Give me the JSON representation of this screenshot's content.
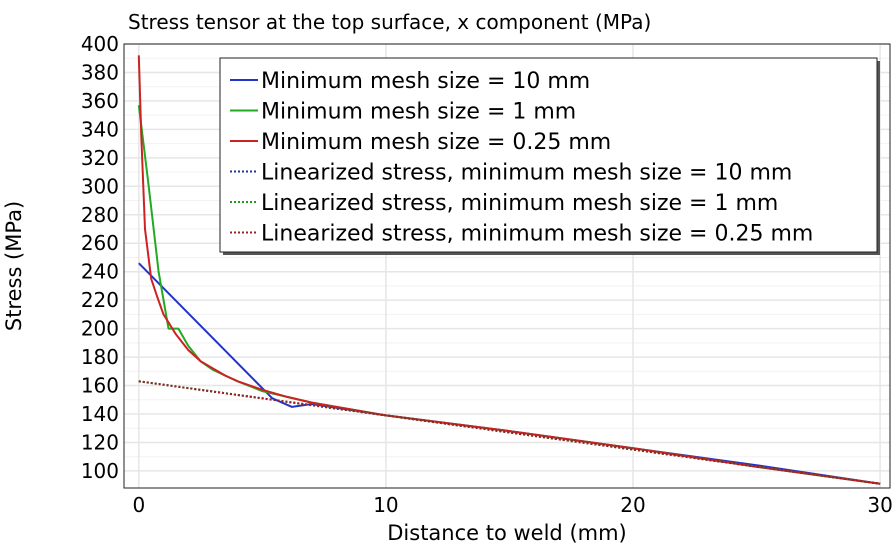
{
  "chart_data": {
    "type": "line",
    "title": "Stress tensor at the top surface, x component (MPa)",
    "xlabel": "Distance to weld (mm)",
    "ylabel": "Stress (MPa)",
    "xlim": [
      -0.6,
      30.4
    ],
    "ylim": [
      88,
      400
    ],
    "xticks": [
      0,
      10,
      20,
      30
    ],
    "yticks": [
      100,
      120,
      140,
      160,
      180,
      200,
      220,
      240,
      260,
      280,
      300,
      320,
      340,
      360,
      380,
      400
    ],
    "grid": true,
    "legend_position": "top-right",
    "series": [
      {
        "name": "Minimum mesh size = 10 mm",
        "color": "#2233cc",
        "style": "solid",
        "x": [
          0,
          5.4,
          6.2,
          7,
          10,
          15,
          20,
          25,
          30
        ],
        "y": [
          246,
          151,
          145,
          147,
          139,
          128,
          116,
          104,
          91
        ]
      },
      {
        "name": "Minimum mesh size = 1 mm",
        "color": "#22aa22",
        "style": "solid",
        "x": [
          0,
          0.4,
          0.8,
          1.2,
          1.6,
          2,
          2.5,
          3,
          3.5,
          4,
          5,
          6,
          7,
          10,
          15,
          20,
          25,
          30
        ],
        "y": [
          357,
          300,
          240,
          200,
          200,
          188,
          177,
          171,
          167,
          163,
          156,
          152,
          148,
          139,
          128,
          116,
          103,
          91
        ]
      },
      {
        "name": "Minimum mesh size = 0.25 mm",
        "color": "#cc2222",
        "style": "solid",
        "x": [
          0,
          0.1,
          0.25,
          0.5,
          0.75,
          1,
          1.5,
          2,
          2.5,
          3,
          3.5,
          4,
          5,
          6,
          7,
          10,
          15,
          20,
          25,
          30
        ],
        "y": [
          392,
          335,
          270,
          235,
          222,
          210,
          196,
          185,
          177,
          172,
          167,
          163,
          157,
          152,
          148,
          139,
          128,
          116,
          103,
          91
        ]
      },
      {
        "name": "Linearized stress, minimum mesh size = 10 mm",
        "color": "#223399",
        "style": "dotted",
        "x": [
          0,
          30
        ],
        "y": [
          163,
          91
        ]
      },
      {
        "name": "Linearized stress, minimum mesh size = 1 mm",
        "color": "#229922",
        "style": "dotted",
        "x": [
          0,
          30
        ],
        "y": [
          163,
          91
        ]
      },
      {
        "name": "Linearized stress, minimum mesh size = 0.25 mm",
        "color": "#992222",
        "style": "dotted",
        "x": [
          0,
          30
        ],
        "y": [
          163,
          91
        ]
      }
    ]
  }
}
